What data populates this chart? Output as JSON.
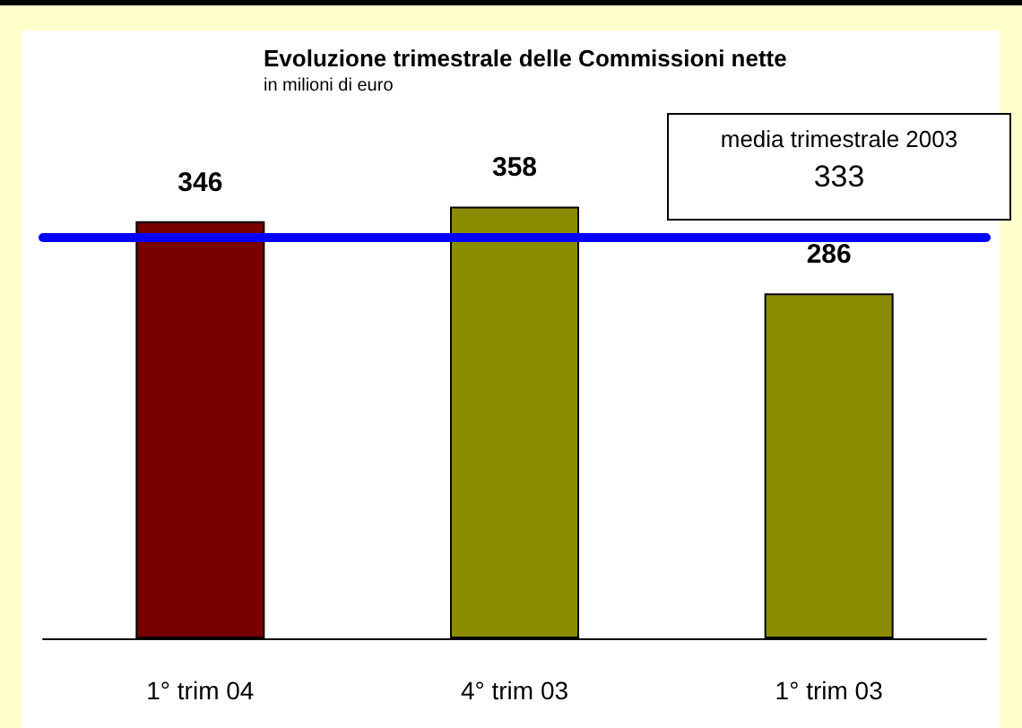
{
  "chart_data": {
    "type": "bar",
    "title": "Evoluzione trimestrale delle Commissioni nette",
    "subtitle": "in milioni di euro",
    "categories": [
      "1° trim 04",
      "4° trim 03",
      "1° trim 03"
    ],
    "values": [
      346,
      358,
      286
    ],
    "colors": [
      "#7a0000",
      "#8c8c00",
      "#8c8c00"
    ],
    "data_labels": true,
    "tick_labels": "x",
    "ref_lines": [
      {
        "axis": "y",
        "value": 333,
        "color": "#0000ff",
        "line_style": "solid"
      }
    ],
    "annotations": [
      "media trimestrale 2003",
      "333"
    ]
  }
}
